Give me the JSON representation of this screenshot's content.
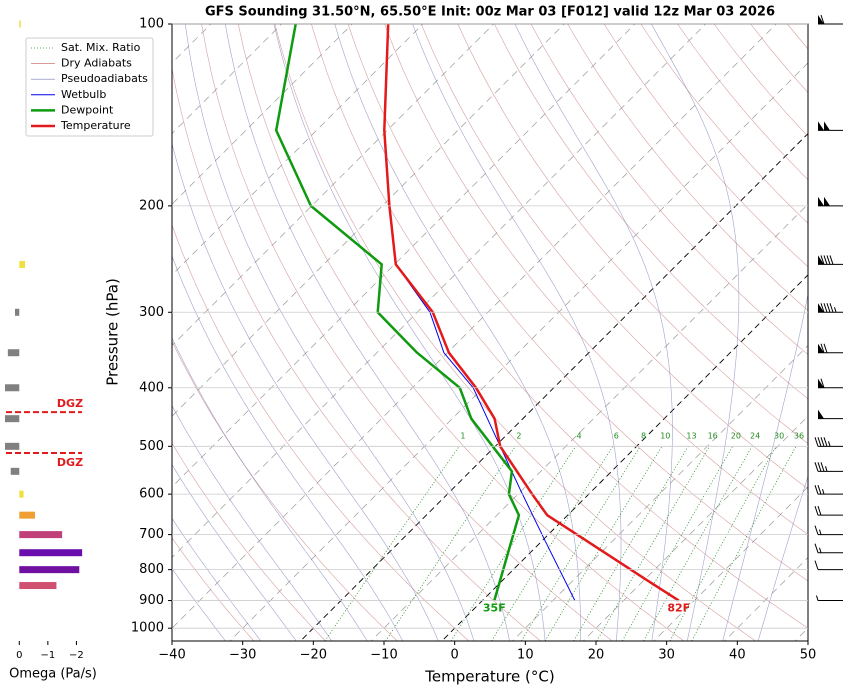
{
  "chart_data": {
    "type": "skewt",
    "title": "GFS Sounding 31.50°N, 65.50°E Init: 00z Mar 03 [F012] valid 12z Mar 03 2026",
    "x_label": "Temperature (°C)",
    "y_label": "Pressure (hPa)",
    "xlim": [
      -40,
      50
    ],
    "xticks": [
      {
        "value": -40,
        "label": "−40"
      },
      {
        "value": -30,
        "label": "−30"
      },
      {
        "value": -20,
        "label": "−20"
      },
      {
        "value": -10,
        "label": "−10"
      },
      0,
      10,
      20,
      30,
      40,
      50
    ],
    "ylim": [
      1050,
      100
    ],
    "yticks": [
      100,
      200,
      300,
      400,
      500,
      600,
      700,
      800,
      900,
      1000
    ],
    "log_y": true,
    "grid": true,
    "legend": "upper left",
    "reference_lines": [
      {
        "name": "Sat. Mix. Ratio",
        "color": "#228b22"
      },
      {
        "name": "Dry Adiabats",
        "color": "#c87878"
      },
      {
        "name": "Pseudoadiabats",
        "color": "#7a7ab8"
      }
    ],
    "series": [
      {
        "name": "Wetbulb",
        "color": "#0000ee",
        "pressure": [
          900,
          715,
          590,
          500,
          400,
          350,
          300,
          250,
          200
        ],
        "values": [
          13.1,
          0.3,
          -10.3,
          -19.3,
          -31.4,
          -40.5,
          -48.2,
          -59.8,
          -69.0
        ]
      },
      {
        "name": "Dewpoint",
        "color": "#0f9a0f",
        "pressure": [
          900,
          650,
          600,
          550,
          450,
          400,
          350,
          300,
          250,
          200,
          150,
          100
        ],
        "values": [
          1.7,
          -6.9,
          -11.3,
          -14.1,
          -27.3,
          -33.3,
          -44.3,
          -55.6,
          -61.8,
          -80.1,
          -95.7,
          -108.0
        ]
      },
      {
        "name": "Temperature",
        "color": "#e31a1c",
        "pressure": [
          900,
          830,
          650,
          600,
          500,
          450,
          400,
          350,
          300,
          250,
          200,
          150,
          100
        ],
        "values": [
          27.8,
          20.1,
          -2.9,
          -8.0,
          -19.3,
          -24.0,
          -31.0,
          -39.8,
          -47.8,
          -59.8,
          -69.0,
          -80.4,
          -94.9
        ]
      }
    ],
    "dewpoint_label": "35F",
    "temperature_label": "82F",
    "mixing_ratio_labels": [
      1,
      2,
      4,
      6,
      8,
      10,
      13,
      16,
      20,
      24,
      30,
      36
    ],
    "wind": {
      "pressure": [
        100,
        150,
        200,
        250,
        300,
        350,
        400,
        450,
        500,
        550,
        600,
        650,
        700,
        750,
        800,
        900
      ],
      "speed": [
        60,
        100,
        100,
        90,
        95,
        70,
        60,
        50,
        45,
        35,
        25,
        20,
        15,
        15,
        10,
        5
      ]
    },
    "omega": {
      "x_label": "Omega (Pa/s)",
      "xlim": [
        0.5,
        -2.3
      ],
      "xticks": [
        0,
        {
          "value": -1,
          "label": "−1"
        },
        {
          "value": -2,
          "label": "−2"
        }
      ],
      "pressure": [
        100,
        250,
        300,
        350,
        400,
        450,
        500,
        550,
        600,
        650,
        700,
        750,
        800,
        850
      ],
      "values": [
        -0.05,
        -0.2,
        0.15,
        0.4,
        0.5,
        0.5,
        0.5,
        0.3,
        -0.15,
        -0.55,
        -1.5,
        -2.2,
        -2.1,
        -1.3
      ],
      "colors": [
        "#f0e040",
        "#f0e040",
        "#808080",
        "#808080",
        "#808080",
        "#808080",
        "#808080",
        "#808080",
        "#f0e040",
        "#f0a030",
        "#c0407a",
        "#6a0dad",
        "#7010a0",
        "#d05070"
      ],
      "dgz_label": "DGZ",
      "dgz": [
        439,
        513
      ]
    }
  }
}
